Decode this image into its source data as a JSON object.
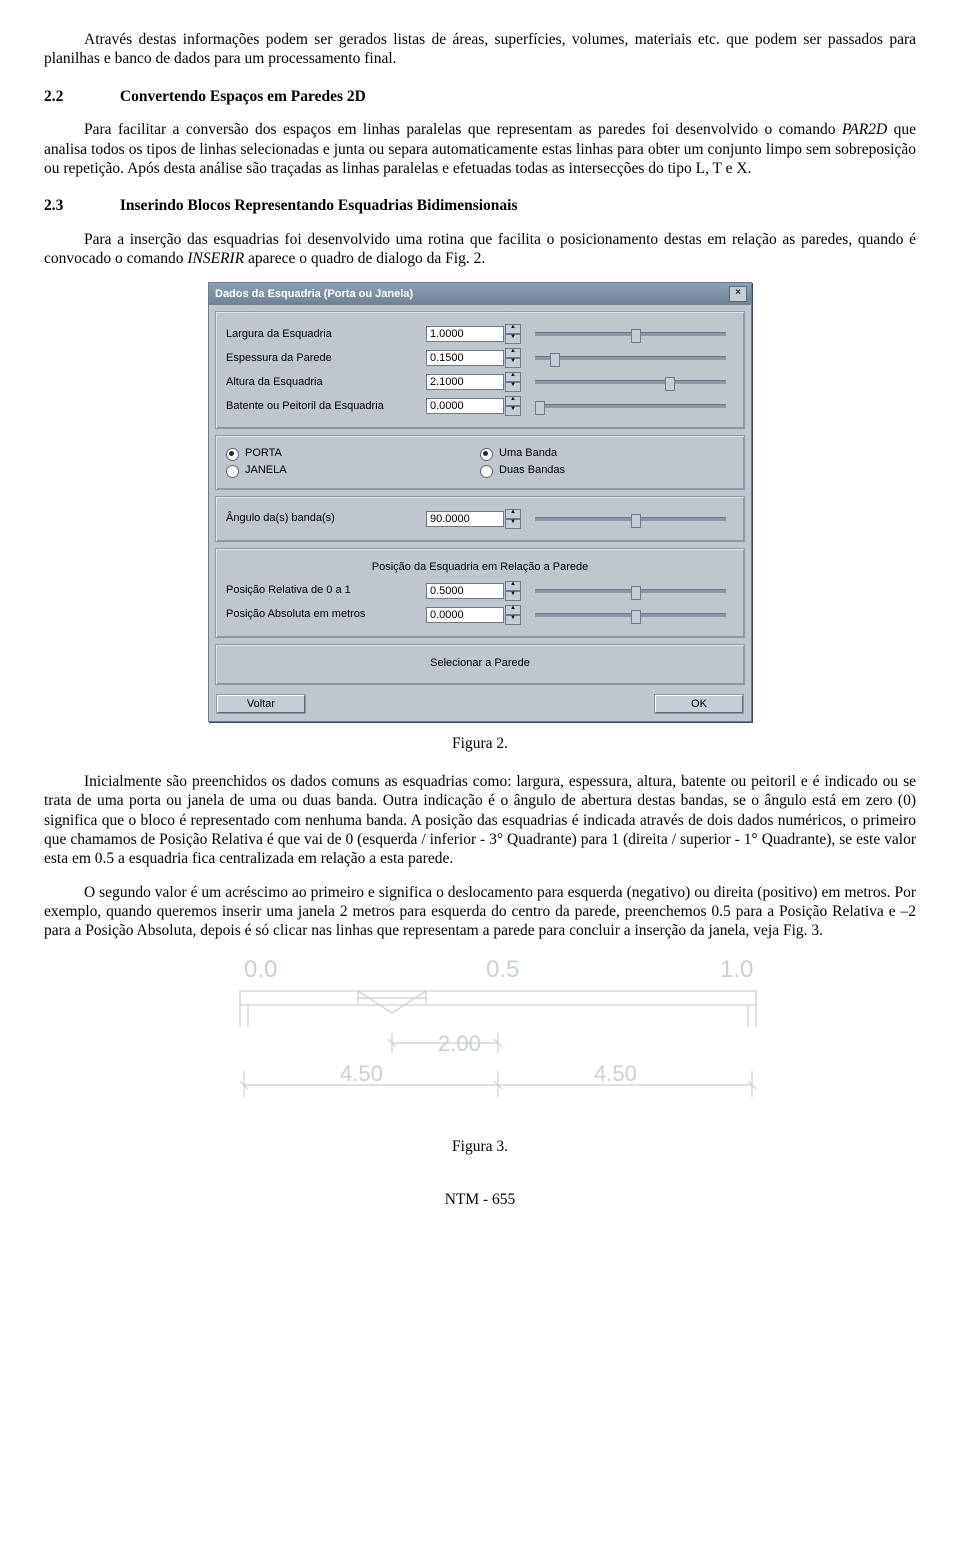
{
  "para1": "Através destas informações podem ser gerados listas de áreas, superfícies, volumes, materiais etc. que podem ser passados para planilhas e banco de dados para um processamento final.",
  "sec22_num": "2.2",
  "sec22_title": "Convertendo Espaços em Paredes 2D",
  "para22a": "Para facilitar a conversão dos espaços em linhas paralelas que representam as paredes foi desenvolvido o comando ",
  "par2d": "PAR2D",
  "para22b": " que analisa todos os tipos de linhas selecionadas e junta ou separa automaticamente estas linhas para obter um conjunto limpo sem sobreposição ou repetição. Após desta análise são traçadas as linhas paralelas e efetuadas todas as intersecções do tipo L, T e X.",
  "sec23_num": "2.3",
  "sec23_title": "Inserindo Blocos Representando Esquadrias Bidimensionais",
  "para23a": "Para a inserção das esquadrias foi desenvolvido uma rotina que facilita o posicionamento destas em relação as paredes, quando é convocado o comando ",
  "inserir": "INSERIR",
  "para23b": " aparece o quadro de dialogo da Fig. 2.",
  "dialog": {
    "title": "Dados da Esquadria (Porta ou Janela)",
    "close": "×",
    "rows": [
      {
        "label": "Largura da Esquadria",
        "value": "1.0000",
        "thumb": 0.5
      },
      {
        "label": "Espessura da Parede",
        "value": "0.1500",
        "thumb": 0.08
      },
      {
        "label": "Altura da Esquadria",
        "value": "2.1000",
        "thumb": 0.68
      },
      {
        "label": "Batente ou Peitoril da Esquadria",
        "value": "0.0000",
        "thumb": 0.0
      }
    ],
    "radio_left": [
      {
        "label": "PORTA",
        "checked": true
      },
      {
        "label": "JANELA",
        "checked": false
      }
    ],
    "radio_right": [
      {
        "label": "Uma Banda",
        "checked": true
      },
      {
        "label": "Duas Bandas",
        "checked": false
      }
    ],
    "angulo": {
      "label": "Ângulo da(s) banda(s)",
      "value": "90.0000",
      "thumb": 0.5
    },
    "pos_title": "Posição da Esquadria em Relação a Parede",
    "pos_rows": [
      {
        "label": "Posição Relativa de 0 a 1",
        "value": "0.5000",
        "thumb": 0.5
      },
      {
        "label": "Posição Absoluta em metros",
        "value": "0.0000",
        "thumb": 0.5
      }
    ],
    "select_label": "Selecionar a Parede",
    "btn_back": "Voltar",
    "btn_ok": "OK"
  },
  "fig2_caption": "Figura 2.",
  "para_after2": "Inicialmente são preenchidos os dados comuns as esquadrias como: largura, espessura, altura, batente ou peitoril e é indicado ou se trata de uma porta ou janela de uma ou duas banda. Outra indicação é o ângulo de abertura destas bandas, se o ângulo está em zero (0) significa que o bloco é representado com nenhuma banda. A posição das esquadrias é indicada através de dois dados numéricos, o primeiro que chamamos de Posição Relativa é que vai de 0 (esquerda / inferior - 3° Quadrante) para 1 (direita / superior - 1° Quadrante), se este valor esta em 0.5 a esquadria fica centralizada em relação a esta parede.",
  "para_after2b": "O segundo valor é um acréscimo ao primeiro e significa o deslocamento para esquerda (negativo) ou direita (positivo) em metros. Por exemplo, quando queremos inserir uma janela 2 metros para esquerda do centro da parede, preenchemos 0.5 para a Posição Relativa e –2 para a Posição Absoluta, depois é só clicar nas linhas que representam a parede para concluir a inserção da janela, veja Fig. 3.",
  "fig3": {
    "scale": [
      "0.0",
      "0.5",
      "1.0"
    ],
    "dim_window": "2.00",
    "dim_half": "4.50"
  },
  "fig3_caption": "Figura 3.",
  "footer": "NTM - 655"
}
